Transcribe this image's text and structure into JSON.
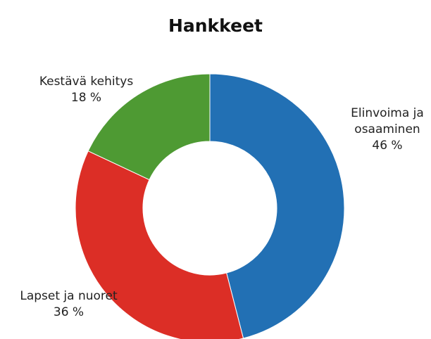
{
  "chart_data": {
    "type": "donut",
    "title": "Hankkeet",
    "categories": [
      "Elinvoima ja osaaminen",
      "Lapset ja nuoret",
      "Kestävä kehitys"
    ],
    "values": [
      46,
      36,
      18
    ],
    "value_labels": [
      "46 %",
      "36 %",
      "18 %"
    ],
    "colors": [
      "#2270b4",
      "#dc2e26",
      "#4e9a33"
    ]
  }
}
